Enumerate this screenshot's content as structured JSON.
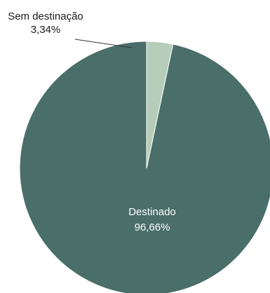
{
  "chart_data": {
    "type": "pie",
    "start_angle_deg": 0,
    "direction": "counterclockwise",
    "slices": [
      {
        "label": "Destinado",
        "value": 96.66,
        "value_label": "96,66%",
        "color": "#4a6e69",
        "label_placement": "inside",
        "label_color": "#ffffff"
      },
      {
        "label": "Sem destinação",
        "value": 3.34,
        "value_label": "3,34%",
        "color": "#b5cdb9",
        "label_placement": "outside-with-leader-line",
        "label_color": "#1a1a1a"
      }
    ]
  }
}
